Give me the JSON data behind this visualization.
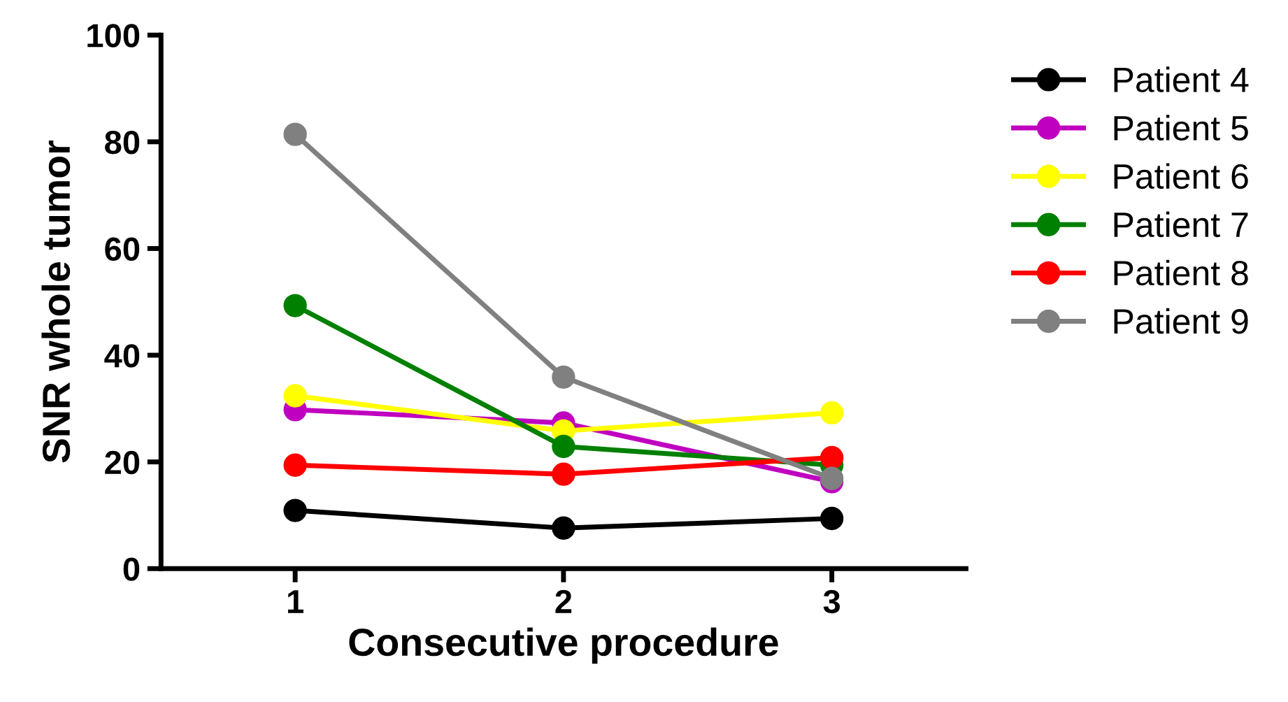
{
  "chart_data": {
    "type": "line",
    "xlabel": "Consecutive procedure",
    "ylabel": "SNR whole tumor",
    "x": [
      1,
      2,
      3
    ],
    "xlim": [
      0.5,
      3.5
    ],
    "xticks": [
      1,
      2,
      3
    ],
    "ylim": [
      0,
      100
    ],
    "yticks": [
      0,
      20,
      40,
      60,
      80,
      100
    ],
    "marker": "circle",
    "line_style": "solid",
    "legend": "right",
    "grid": false,
    "series": [
      {
        "name": "Patient 4",
        "color": "#000000",
        "values": [
          10.9,
          7.6,
          9.4
        ]
      },
      {
        "name": "Patient 5",
        "color": "#c000c0",
        "values": [
          29.8,
          27.3,
          16.3
        ]
      },
      {
        "name": "Patient 6",
        "color": "#ffff00",
        "values": [
          32.4,
          25.8,
          29.2
        ]
      },
      {
        "name": "Patient 7",
        "color": "#008000",
        "values": [
          49.3,
          22.9,
          19.4
        ]
      },
      {
        "name": "Patient 8",
        "color": "#ff0000",
        "values": [
          19.4,
          17.7,
          20.8
        ]
      },
      {
        "name": "Patient 9",
        "color": "#808080",
        "values": [
          81.4,
          35.9,
          16.9
        ]
      }
    ]
  }
}
